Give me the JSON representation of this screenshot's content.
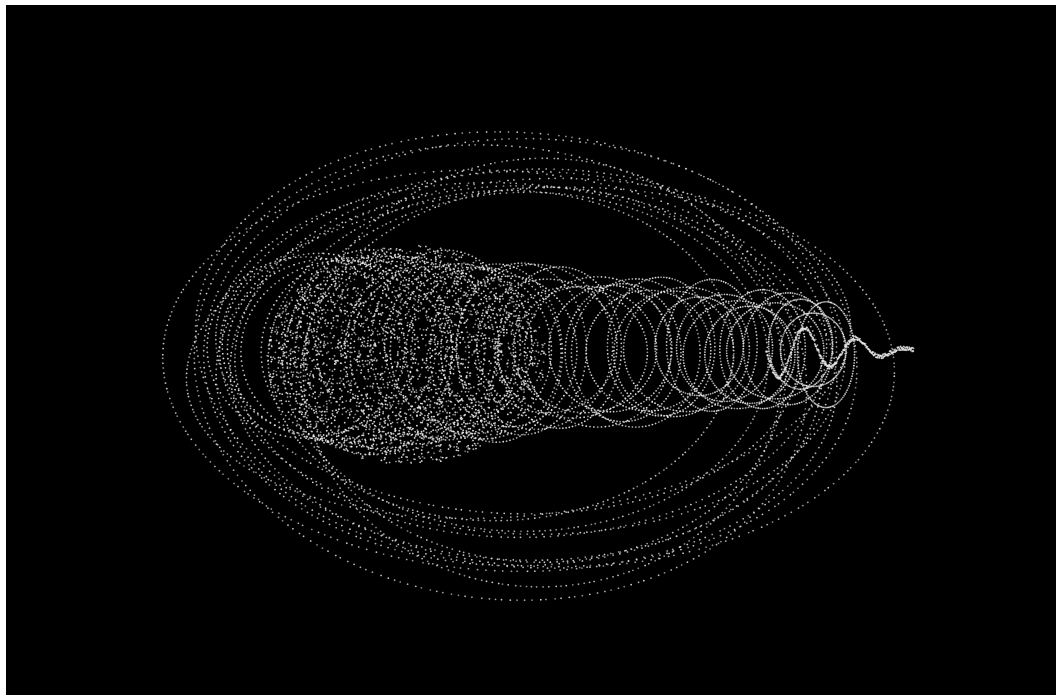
{
  "scene": {
    "background_color": "#000000",
    "point_color": "#e8e8e8",
    "title": ""
  }
}
